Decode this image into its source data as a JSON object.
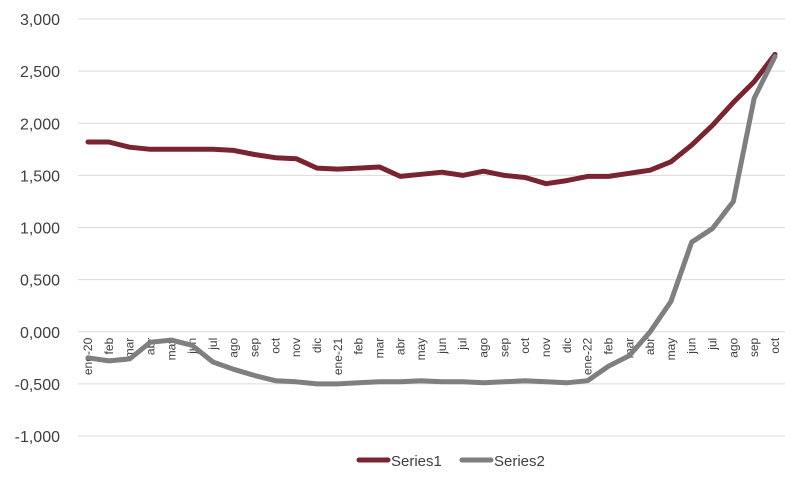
{
  "chart_data": {
    "type": "line",
    "categories": [
      "ene-20",
      "feb",
      "mar",
      "abr",
      "may",
      "jun",
      "jul",
      "ago",
      "sep",
      "oct",
      "nov",
      "dic",
      "ene-21",
      "feb",
      "mar",
      "abr",
      "may",
      "jun",
      "jul",
      "ago",
      "sep",
      "oct",
      "nov",
      "dic",
      "ene-22",
      "feb",
      "mar",
      "abr",
      "may",
      "jun",
      "jul",
      "ago",
      "sep",
      "oct"
    ],
    "ylim": [
      -1000,
      3000
    ],
    "yticks": [
      -1000,
      -500,
      0,
      500,
      1000,
      1500,
      2000,
      2500,
      3000
    ],
    "ytick_labels": [
      "-1,000",
      "-0,500",
      "0,000",
      "0,500",
      "1,000",
      "1,500",
      "2,000",
      "2,500",
      "3,000"
    ],
    "gridlines": true,
    "legend_position": "bottom",
    "series": [
      {
        "name": "Series1",
        "color": "#7a2431",
        "values": [
          1820,
          1820,
          1770,
          1750,
          1750,
          1750,
          1750,
          1740,
          1700,
          1670,
          1660,
          1570,
          1560,
          1570,
          1580,
          1490,
          1510,
          1530,
          1500,
          1540,
          1500,
          1480,
          1420,
          1450,
          1490,
          1490,
          1520,
          1550,
          1630,
          1790,
          1980,
          2200,
          2400,
          2660
        ]
      },
      {
        "name": "Series2",
        "color": "#7f7f7f",
        "values": [
          -250,
          -280,
          -260,
          -100,
          -80,
          -130,
          -290,
          -360,
          -420,
          -470,
          -480,
          -500,
          -500,
          -490,
          -480,
          -480,
          -470,
          -480,
          -480,
          -490,
          -480,
          -470,
          -480,
          -490,
          -470,
          -330,
          -230,
          0,
          290,
          860,
          990,
          1250,
          2240,
          2640
        ]
      }
    ]
  }
}
